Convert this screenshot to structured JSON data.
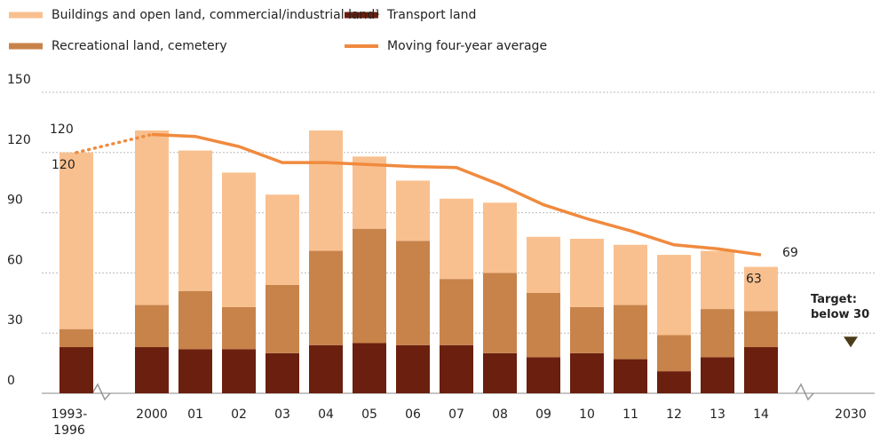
{
  "chart_data": {
    "type": "stacked_bar_line",
    "categories": [
      "1993-\n1996",
      "2000",
      "01",
      "02",
      "03",
      "04",
      "05",
      "06",
      "07",
      "08",
      "09",
      "10",
      "11",
      "12",
      "13",
      "14",
      "2030"
    ],
    "series": [
      {
        "name": "Transport land",
        "color": "#6b1f0e",
        "values": [
          23,
          23,
          22,
          22,
          20,
          24,
          25,
          24,
          24,
          20,
          18,
          20,
          17,
          11,
          18,
          23,
          null
        ]
      },
      {
        "name": "Recreational land, cemetery",
        "color": "#c8834a",
        "values": [
          9,
          21,
          29,
          21,
          34,
          47,
          57,
          52,
          33,
          40,
          32,
          23,
          27,
          18,
          24,
          18,
          null
        ]
      },
      {
        "name": "Buildings and open land, commercial/industrial land¹",
        "color": "#f9c08f",
        "values": [
          88,
          87,
          70,
          67,
          45,
          60,
          36,
          30,
          40,
          35,
          28,
          34,
          30,
          40,
          29,
          22,
          null
        ]
      },
      {
        "name": "Moving four-year average",
        "color": "#f08a3e",
        "type": "line",
        "values": [
          120,
          129,
          128,
          123,
          115,
          115,
          114,
          113,
          112.5,
          104,
          94,
          87,
          81,
          74,
          72,
          69,
          null
        ]
      }
    ],
    "annotations": [
      {
        "text": "120",
        "category": 0,
        "of": "line"
      },
      {
        "text": "120",
        "category": 0,
        "of": "total"
      },
      {
        "text": "69",
        "category": 15,
        "of": "line"
      },
      {
        "text": "63",
        "category": 15,
        "of": "total"
      }
    ],
    "target": {
      "label": "Target:\nbelow 30",
      "value": 30,
      "category": 16
    },
    "ylim": [
      0,
      150
    ],
    "yticks": [
      0,
      30,
      60,
      90,
      120,
      150
    ],
    "grid": true
  }
}
